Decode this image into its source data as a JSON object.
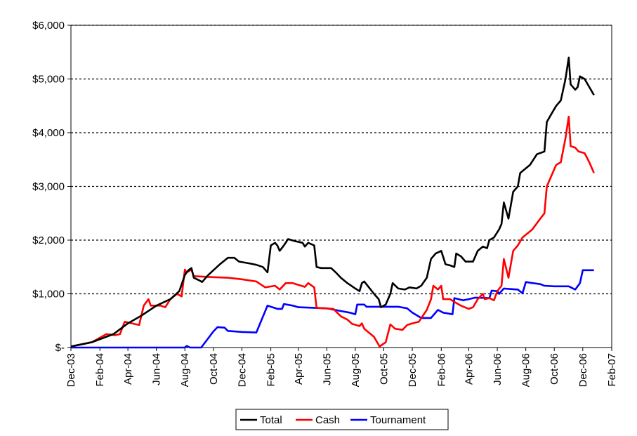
{
  "chart_data": {
    "type": "line",
    "title": "",
    "xlabel": "",
    "ylabel": "",
    "ylim": [
      0,
      6000
    ],
    "y_ticks": [
      0,
      1000,
      2000,
      3000,
      4000,
      5000,
      6000
    ],
    "y_tick_labels": [
      "$-",
      "$1,000",
      "$2,000",
      "$3,000",
      "$4,000",
      "$5,000",
      "$6,000"
    ],
    "xlim": [
      "2003-12-01",
      "2007-02-01"
    ],
    "x_tick_labels": [
      "Dec-03",
      "Feb-04",
      "Apr-04",
      "Jun-04",
      "Aug-04",
      "Oct-04",
      "Dec-04",
      "Feb-05",
      "Apr-05",
      "Jun-05",
      "Aug-05",
      "Oct-05",
      "Dec-05",
      "Feb-06",
      "Apr-06",
      "Jun-06",
      "Aug-06",
      "Oct-06",
      "Dec-06",
      "Feb-07"
    ],
    "grid": "horizontal dotted",
    "legend_position": "bottom",
    "series": [
      {
        "name": "Total",
        "color": "#000000",
        "points": [
          [
            "2003-12-01",
            20
          ],
          [
            "2004-01-15",
            100
          ],
          [
            "2004-03-01",
            250
          ],
          [
            "2004-04-01",
            450
          ],
          [
            "2004-05-01",
            600
          ],
          [
            "2004-06-01",
            780
          ],
          [
            "2004-07-01",
            900
          ],
          [
            "2004-07-20",
            1050
          ],
          [
            "2004-08-01",
            1350
          ],
          [
            "2004-08-05",
            1400
          ],
          [
            "2004-08-10",
            1450
          ],
          [
            "2004-08-15",
            1480
          ],
          [
            "2004-08-20",
            1300
          ],
          [
            "2004-09-01",
            1250
          ],
          [
            "2004-09-07",
            1220
          ],
          [
            "2004-09-20",
            1350
          ],
          [
            "2004-10-15",
            1550
          ],
          [
            "2004-11-01",
            1670
          ],
          [
            "2004-11-15",
            1670
          ],
          [
            "2004-11-25",
            1600
          ],
          [
            "2004-12-15",
            1570
          ],
          [
            "2005-01-01",
            1540
          ],
          [
            "2005-01-15",
            1500
          ],
          [
            "2005-01-25",
            1400
          ],
          [
            "2005-02-01",
            1900
          ],
          [
            "2005-02-10",
            1950
          ],
          [
            "2005-02-15",
            1900
          ],
          [
            "2005-02-20",
            1800
          ],
          [
            "2005-03-01",
            1900
          ],
          [
            "2005-03-10",
            2020
          ],
          [
            "2005-03-25",
            1980
          ],
          [
            "2005-04-10",
            1950
          ],
          [
            "2005-04-15",
            1880
          ],
          [
            "2005-04-22",
            1950
          ],
          [
            "2005-05-05",
            1900
          ],
          [
            "2005-05-10",
            1500
          ],
          [
            "2005-05-20",
            1480
          ],
          [
            "2005-06-10",
            1480
          ],
          [
            "2005-06-20",
            1400
          ],
          [
            "2005-07-01",
            1300
          ],
          [
            "2005-07-15",
            1200
          ],
          [
            "2005-08-01",
            1100
          ],
          [
            "2005-08-10",
            1050
          ],
          [
            "2005-08-15",
            1200
          ],
          [
            "2005-08-20",
            1230
          ],
          [
            "2005-09-01",
            1100
          ],
          [
            "2005-09-10",
            1000
          ],
          [
            "2005-09-20",
            900
          ],
          [
            "2005-09-25",
            750
          ],
          [
            "2005-10-05",
            800
          ],
          [
            "2005-10-15",
            1000
          ],
          [
            "2005-10-20",
            1200
          ],
          [
            "2005-11-01",
            1100
          ],
          [
            "2005-11-15",
            1080
          ],
          [
            "2005-11-25",
            1120
          ],
          [
            "2005-12-10",
            1100
          ],
          [
            "2005-12-20",
            1150
          ],
          [
            "2006-01-01",
            1300
          ],
          [
            "2006-01-10",
            1650
          ],
          [
            "2006-01-20",
            1750
          ],
          [
            "2006-02-01",
            1800
          ],
          [
            "2006-02-10",
            1550
          ],
          [
            "2006-02-20",
            1530
          ],
          [
            "2006-03-01",
            1500
          ],
          [
            "2006-03-05",
            1750
          ],
          [
            "2006-03-15",
            1700
          ],
          [
            "2006-03-25",
            1600
          ],
          [
            "2006-04-10",
            1600
          ],
          [
            "2006-04-20",
            1800
          ],
          [
            "2006-05-01",
            1880
          ],
          [
            "2006-05-10",
            1850
          ],
          [
            "2006-05-15",
            2000
          ],
          [
            "2006-05-25",
            2050
          ],
          [
            "2006-06-05",
            2200
          ],
          [
            "2006-06-10",
            2300
          ],
          [
            "2006-06-15",
            2700
          ],
          [
            "2006-06-25",
            2400
          ],
          [
            "2006-07-05",
            2900
          ],
          [
            "2006-07-15",
            3000
          ],
          [
            "2006-07-20",
            3250
          ],
          [
            "2006-08-10",
            3400
          ],
          [
            "2006-08-25",
            3600
          ],
          [
            "2006-09-10",
            3650
          ],
          [
            "2006-09-15",
            4200
          ],
          [
            "2006-09-25",
            4350
          ],
          [
            "2006-10-05",
            4500
          ],
          [
            "2006-10-15",
            4600
          ],
          [
            "2006-10-25",
            5000
          ],
          [
            "2006-11-01",
            5400
          ],
          [
            "2006-11-05",
            4900
          ],
          [
            "2006-11-15",
            4800
          ],
          [
            "2006-11-20",
            4850
          ],
          [
            "2006-11-25",
            5050
          ],
          [
            "2006-12-05",
            5000
          ],
          [
            "2006-12-15",
            4850
          ],
          [
            "2006-12-25",
            4700
          ]
        ]
      },
      {
        "name": "Cash",
        "color": "#ff0000",
        "points": [
          [
            "2003-12-01",
            20
          ],
          [
            "2004-01-15",
            100
          ],
          [
            "2004-02-15",
            250
          ],
          [
            "2004-03-05",
            230
          ],
          [
            "2004-03-15",
            250
          ],
          [
            "2004-03-25",
            480
          ],
          [
            "2004-04-10",
            450
          ],
          [
            "2004-04-25",
            420
          ],
          [
            "2004-05-05",
            780
          ],
          [
            "2004-05-15",
            900
          ],
          [
            "2004-05-20",
            780
          ],
          [
            "2004-06-10",
            780
          ],
          [
            "2004-06-20",
            750
          ],
          [
            "2004-07-01",
            900
          ],
          [
            "2004-07-15",
            1000
          ],
          [
            "2004-07-25",
            950
          ],
          [
            "2004-08-01",
            1450
          ],
          [
            "2004-08-05",
            1400
          ],
          [
            "2004-08-15",
            1450
          ],
          [
            "2004-08-20",
            1330
          ],
          [
            "2004-10-01",
            1310
          ],
          [
            "2004-11-01",
            1300
          ],
          [
            "2004-12-01",
            1270
          ],
          [
            "2005-01-01",
            1230
          ],
          [
            "2005-01-20",
            1120
          ],
          [
            "2005-02-10",
            1150
          ],
          [
            "2005-02-20",
            1080
          ],
          [
            "2005-03-05",
            1200
          ],
          [
            "2005-03-20",
            1200
          ],
          [
            "2005-04-15",
            1130
          ],
          [
            "2005-04-22",
            1200
          ],
          [
            "2005-05-05",
            1120
          ],
          [
            "2005-05-10",
            740
          ],
          [
            "2005-06-15",
            720
          ],
          [
            "2005-07-01",
            580
          ],
          [
            "2005-07-15",
            520
          ],
          [
            "2005-07-25",
            440
          ],
          [
            "2005-08-10",
            400
          ],
          [
            "2005-08-15",
            450
          ],
          [
            "2005-08-20",
            350
          ],
          [
            "2005-09-10",
            200
          ],
          [
            "2005-09-22",
            20
          ],
          [
            "2005-10-05",
            100
          ],
          [
            "2005-10-15",
            430
          ],
          [
            "2005-10-25",
            350
          ],
          [
            "2005-11-10",
            330
          ],
          [
            "2005-11-20",
            420
          ],
          [
            "2005-12-01",
            450
          ],
          [
            "2005-12-15",
            480
          ],
          [
            "2006-01-01",
            700
          ],
          [
            "2006-01-10",
            900
          ],
          [
            "2006-01-15",
            1150
          ],
          [
            "2006-01-25",
            1080
          ],
          [
            "2006-02-01",
            1150
          ],
          [
            "2006-02-05",
            900
          ],
          [
            "2006-02-20",
            900
          ],
          [
            "2006-03-01",
            850
          ],
          [
            "2006-03-15",
            780
          ],
          [
            "2006-04-01",
            720
          ],
          [
            "2006-04-10",
            750
          ],
          [
            "2006-04-20",
            900
          ],
          [
            "2006-05-01",
            1000
          ],
          [
            "2006-05-05",
            900
          ],
          [
            "2006-05-15",
            920
          ],
          [
            "2006-05-25",
            880
          ],
          [
            "2006-06-01",
            1050
          ],
          [
            "2006-06-10",
            1150
          ],
          [
            "2006-06-15",
            1650
          ],
          [
            "2006-06-25",
            1300
          ],
          [
            "2006-07-05",
            1800
          ],
          [
            "2006-07-15",
            1900
          ],
          [
            "2006-07-25",
            2050
          ],
          [
            "2006-08-15",
            2200
          ],
          [
            "2006-09-01",
            2400
          ],
          [
            "2006-09-10",
            2500
          ],
          [
            "2006-09-15",
            3000
          ],
          [
            "2006-09-25",
            3200
          ],
          [
            "2006-10-05",
            3400
          ],
          [
            "2006-10-15",
            3450
          ],
          [
            "2006-10-25",
            3900
          ],
          [
            "2006-11-01",
            4300
          ],
          [
            "2006-11-05",
            3750
          ],
          [
            "2006-11-15",
            3720
          ],
          [
            "2006-11-22",
            3650
          ],
          [
            "2006-12-05",
            3620
          ],
          [
            "2006-12-15",
            3450
          ],
          [
            "2006-12-25",
            3250
          ]
        ]
      },
      {
        "name": "Tournament",
        "color": "#0000ff",
        "points": [
          [
            "2003-12-01",
            0
          ],
          [
            "2004-08-01",
            0
          ],
          [
            "2004-08-05",
            30
          ],
          [
            "2004-08-12",
            0
          ],
          [
            "2004-09-05",
            0
          ],
          [
            "2004-10-01",
            300
          ],
          [
            "2004-10-10",
            380
          ],
          [
            "2004-10-25",
            370
          ],
          [
            "2004-11-01",
            310
          ],
          [
            "2004-12-01",
            290
          ],
          [
            "2005-01-01",
            280
          ],
          [
            "2005-01-25",
            780
          ],
          [
            "2005-02-15",
            720
          ],
          [
            "2005-02-25",
            720
          ],
          [
            "2005-03-01",
            810
          ],
          [
            "2005-03-20",
            780
          ],
          [
            "2005-04-01",
            750
          ],
          [
            "2005-06-01",
            730
          ],
          [
            "2005-07-01",
            680
          ],
          [
            "2005-07-20",
            650
          ],
          [
            "2005-08-01",
            620
          ],
          [
            "2005-08-05",
            800
          ],
          [
            "2005-08-20",
            800
          ],
          [
            "2005-08-25",
            760
          ],
          [
            "2005-11-01",
            760
          ],
          [
            "2005-11-20",
            730
          ],
          [
            "2005-12-01",
            650
          ],
          [
            "2005-12-20",
            550
          ],
          [
            "2006-01-10",
            550
          ],
          [
            "2006-01-25",
            700
          ],
          [
            "2006-02-05",
            650
          ],
          [
            "2006-02-25",
            620
          ],
          [
            "2006-03-01",
            920
          ],
          [
            "2006-03-20",
            880
          ],
          [
            "2006-04-01",
            900
          ],
          [
            "2006-04-15",
            930
          ],
          [
            "2006-05-15",
            920
          ],
          [
            "2006-05-20",
            1060
          ],
          [
            "2006-06-01",
            1050
          ],
          [
            "2006-06-05",
            1000
          ],
          [
            "2006-06-15",
            1100
          ],
          [
            "2006-07-15",
            1080
          ],
          [
            "2006-07-25",
            1010
          ],
          [
            "2006-08-01",
            1220
          ],
          [
            "2006-08-15",
            1200
          ],
          [
            "2006-09-01",
            1180
          ],
          [
            "2006-09-10",
            1150
          ],
          [
            "2006-10-01",
            1140
          ],
          [
            "2006-11-01",
            1140
          ],
          [
            "2006-11-15",
            1080
          ],
          [
            "2006-11-25",
            1200
          ],
          [
            "2006-12-01",
            1440
          ],
          [
            "2006-12-25",
            1440
          ]
        ]
      }
    ]
  }
}
